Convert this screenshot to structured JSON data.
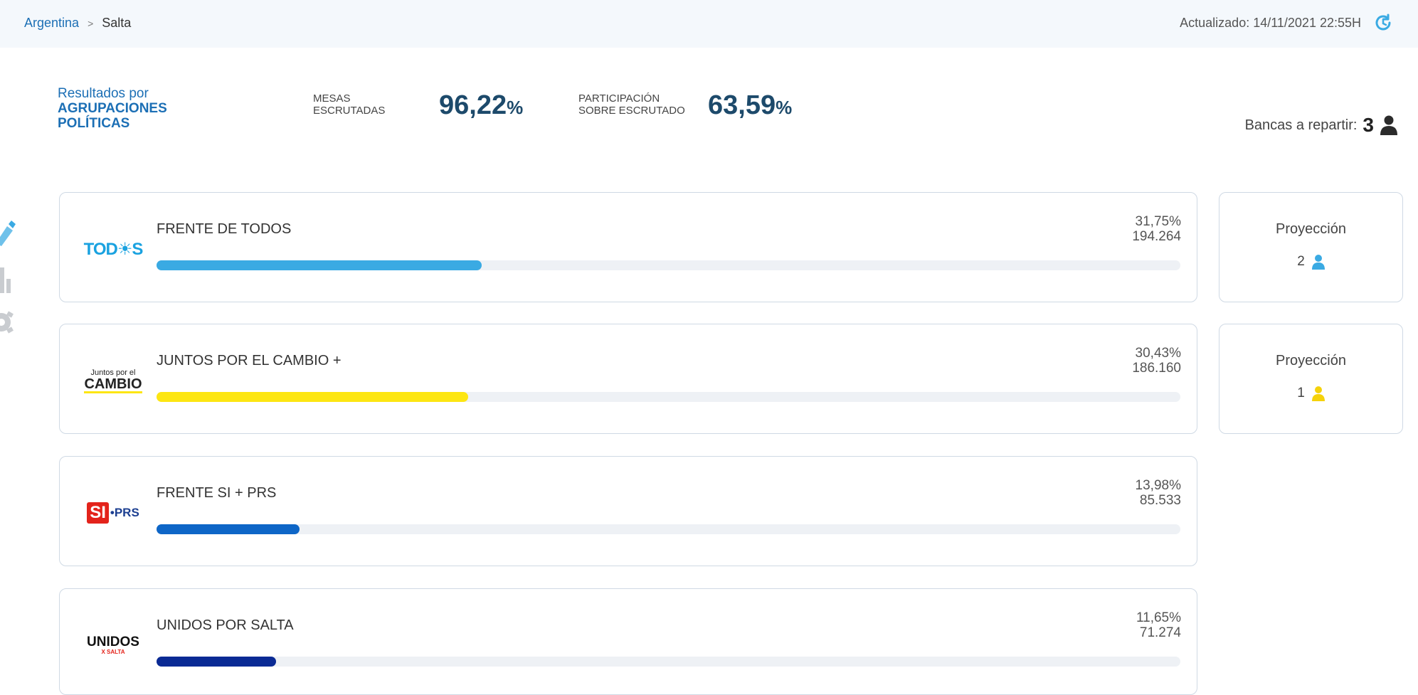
{
  "breadcrumb": {
    "country": "Argentina",
    "separator": ">",
    "province": "Salta"
  },
  "header": {
    "updated": "Actualizado: 14/11/2021 22:55H",
    "refresh_icon": "refresh-icon"
  },
  "title": {
    "line1": "Resultados por",
    "line2": "AGRUPACIONES",
    "line3": "POLÍTICAS"
  },
  "stats": {
    "mesas_label_1": "MESAS",
    "mesas_label_2": "ESCRUTADAS",
    "mesas_value": "96,22",
    "participacion_label_1": "PARTICIPACIÓN",
    "participacion_label_2": "SOBRE ESCRUTADO",
    "participacion_value": "63,59",
    "percent_sign": "%"
  },
  "bancas": {
    "label": "Bancas a repartir:",
    "count": "3",
    "icon": "person-icon"
  },
  "parties": [
    {
      "logo_text": "TOD☀S",
      "name": "FRENTE DE TODOS",
      "pct": "31,75%",
      "votes": "194.264",
      "share": 31.75,
      "color": "#3aaae3"
    },
    {
      "logo_text_1": "Juntos por el",
      "logo_text_2": "CAMBIO",
      "name": "JUNTOS POR EL CAMBIO +",
      "pct": "30,43%",
      "votes": "186.160",
      "share": 30.43,
      "color": "#fde612"
    },
    {
      "logo_text_1": "SI",
      "logo_text_2": "•PRS",
      "name": "FRENTE SI + PRS",
      "pct": "13,98%",
      "votes": "85.533",
      "share": 13.98,
      "color": "#0e66c7"
    },
    {
      "logo_text_1": "UNIDOS",
      "logo_text_2": "X SALTA",
      "name": "UNIDOS POR SALTA",
      "pct": "11,65%",
      "votes": "71.274",
      "share": 11.65,
      "color": "#0a2a94"
    }
  ],
  "projections": [
    {
      "label": "Proyección",
      "value": "2",
      "color": "#3aaae3"
    },
    {
      "label": "Proyección",
      "value": "1",
      "color": "#f5d20a"
    }
  ]
}
